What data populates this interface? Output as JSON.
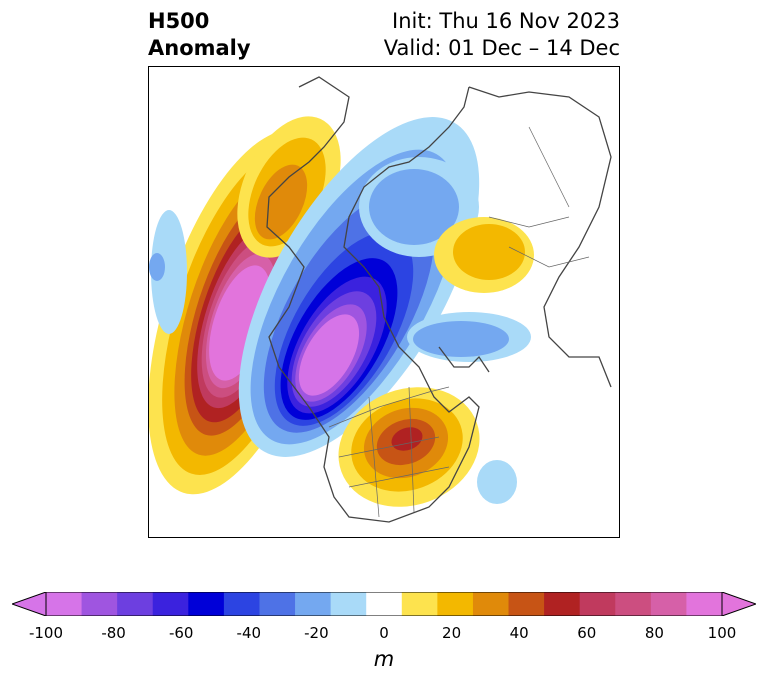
{
  "title": {
    "left_line1": "H500",
    "left_line2": "Anomaly",
    "right_line1": "Init: Thu 16 Nov 2023",
    "right_line2": "Valid: 01 Dec – 14 Dec"
  },
  "colorbar": {
    "unit": "m",
    "ticks": [
      "-100",
      "-80",
      "-60",
      "-40",
      "-20",
      "0",
      "20",
      "40",
      "60",
      "80",
      "100"
    ],
    "levels": [
      -100,
      -90,
      -80,
      -70,
      -60,
      -50,
      -40,
      -30,
      -20,
      -10,
      10,
      20,
      30,
      40,
      50,
      60,
      70,
      80,
      90,
      100
    ],
    "colors": [
      "#d674e8",
      "#9f55e0",
      "#6d3fe0",
      "#3b22de",
      "#0000d8",
      "#2c44e2",
      "#4e72e6",
      "#74a8f0",
      "#a9daf8",
      "#ffffff",
      "#fde34e",
      "#f3b800",
      "#e08a0a",
      "#c75415",
      "#b02222",
      "#c03a5e",
      "#cc4e80",
      "#d660a8",
      "#e274dc"
    ],
    "extend": "both"
  },
  "map": {
    "region": "North America / Northern Hemisphere polar view",
    "anomalies": [
      {
        "feature": "ridge",
        "location": "northeast Pacific / Gulf of Alaska",
        "peak_m": 100
      },
      {
        "feature": "trough",
        "location": "Alaska / western Canada",
        "peak_m": -100
      },
      {
        "feature": "ridge",
        "location": "eastern United States / Great Lakes",
        "peak_m": 60
      },
      {
        "feature": "ridge",
        "location": "Siberia",
        "peak_m": 30
      },
      {
        "feature": "trough",
        "location": "Arctic / Greenland",
        "peak_m": -40
      }
    ]
  }
}
